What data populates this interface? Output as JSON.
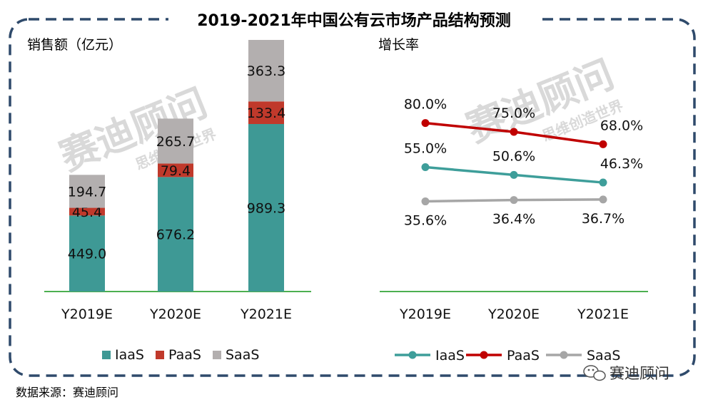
{
  "title": "2019-2021年中国公有云市场产品结构预测",
  "source": "数据来源：赛迪顾问",
  "watermark": {
    "brand": "赛迪顾问",
    "slogan": "思维创造世界"
  },
  "footer_brand": "赛迪顾问",
  "colors": {
    "IaaS": "#3e9995",
    "PaaS": "#c0392b",
    "SaaS": "#b3afaf",
    "line_PaaS": "#c00000",
    "line_IaaS": "#3e9e9a",
    "line_SaaS": "#a6a6a6",
    "baseline": "#4caf50",
    "frame": "#2f4a6b"
  },
  "chart_data": [
    {
      "type": "bar",
      "stacked": true,
      "ylabel": "销售额（亿元）",
      "categories": [
        "Y2019E",
        "Y2020E",
        "Y2021E"
      ],
      "series": [
        {
          "name": "IaaS",
          "values": [
            449.0,
            676.2,
            989.3
          ],
          "labels": [
            "449.0",
            "676.2",
            "989.3"
          ]
        },
        {
          "name": "PaaS",
          "values": [
            45.4,
            79.4,
            133.4
          ],
          "labels": [
            "45.4",
            "79.4",
            "133.4"
          ]
        },
        {
          "name": "SaaS",
          "values": [
            194.7,
            265.7,
            363.3
          ],
          "labels": [
            "194.7",
            "265.7",
            "363.3"
          ]
        }
      ],
      "legend": "bottom"
    },
    {
      "type": "line",
      "ylabel": "增长率",
      "categories": [
        "Y2019E",
        "Y2020E",
        "Y2021E"
      ],
      "series": [
        {
          "name": "IaaS",
          "values": [
            55.0,
            50.6,
            46.3
          ],
          "labels": [
            "55.0%",
            "50.6%",
            "46.3%"
          ]
        },
        {
          "name": "PaaS",
          "values": [
            80.0,
            75.0,
            68.0
          ],
          "labels": [
            "80.0%",
            "75.0%",
            "68.0%"
          ]
        },
        {
          "name": "SaaS",
          "values": [
            35.6,
            36.4,
            36.7
          ],
          "labels": [
            "35.6%",
            "36.4%",
            "36.7%"
          ]
        }
      ],
      "legend": "bottom"
    }
  ]
}
